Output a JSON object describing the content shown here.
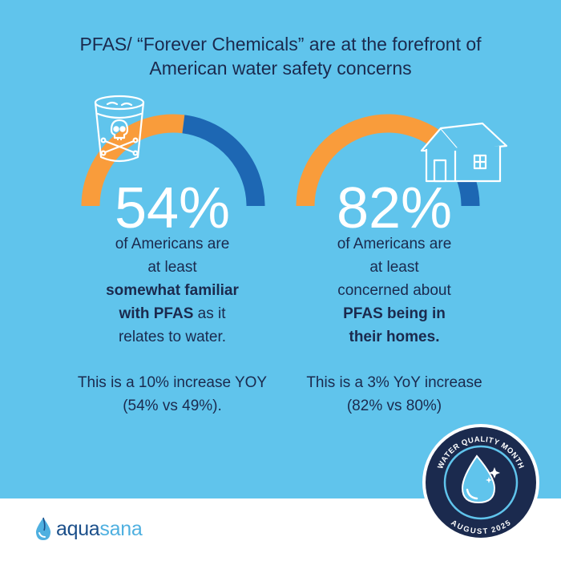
{
  "title": {
    "line1": "PFAS/ “Forever Chemicals” are at the forefront of",
    "line2": "American water safety concerns"
  },
  "stats": [
    {
      "percent_label": "54%",
      "value": 0.54,
      "line1": "of Americans are",
      "line2": "at least",
      "bold1": "somewhat familiar",
      "bold2": "with PFAS",
      "after_bold2": " as it",
      "line5": "relates to water.",
      "note1": "This is a 10% increase YOY",
      "note2": "(54% vs 49%).",
      "icon": "poison-water-glass-icon"
    },
    {
      "percent_label": "82%",
      "value": 0.82,
      "line1": "of Americans are",
      "line2": "at least",
      "line3": "concerned about",
      "bold1": "PFAS being in",
      "bold2": "their homes.",
      "note1": "This is a 3% YoY increase",
      "note2": "(82% vs 80%)",
      "icon": "house-icon"
    }
  ],
  "badge": {
    "top_text": "WATER QUALITY MONTH",
    "bottom_text": "AUGUST 2025",
    "icon": "water-drop-icon"
  },
  "logo": {
    "name_part1": "aqua",
    "name_part2": "sana",
    "icon": "aquasana-drop-icon"
  },
  "colors": {
    "background": "#60c4ec",
    "navy": "#1b2a4e",
    "orange": "#f99c3b",
    "blue": "#1d67b3",
    "white": "#ffffff"
  }
}
